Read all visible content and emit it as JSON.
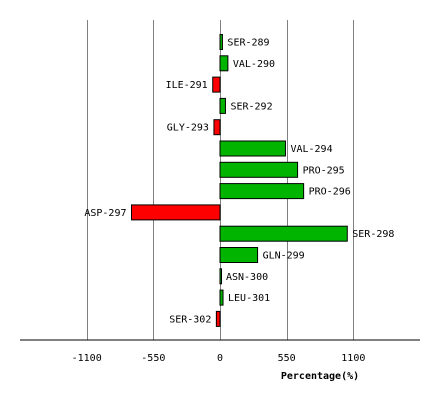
{
  "chart_data": {
    "type": "bar",
    "orientation": "horizontal",
    "title": "",
    "xlabel": "Percentage(%)",
    "ylabel": "",
    "xlim": [
      -1650,
      1650
    ],
    "xticks": [
      -1100,
      -550,
      0,
      550,
      1100
    ],
    "xtick_labels": [
      "-1100",
      "-550",
      "0",
      "550",
      "1100"
    ],
    "grid": "vertical",
    "legend": "none",
    "colors": {
      "positive": "#00b400",
      "negative": "#ff0000",
      "grid": "#808080",
      "axis": "#000000"
    },
    "categories": [
      "SER-289",
      "VAL-290",
      "ILE-291",
      "SER-292",
      "GLY-293",
      "VAL-294",
      "PRO-295",
      "PRO-296",
      "ASP-297",
      "SER-298",
      "GLN-299",
      "ASN-300",
      "LEU-301",
      "SER-302"
    ],
    "values": [
      20,
      65,
      -60,
      45,
      -50,
      540,
      640,
      690,
      -730,
      1050,
      310,
      8,
      25,
      -30
    ]
  }
}
